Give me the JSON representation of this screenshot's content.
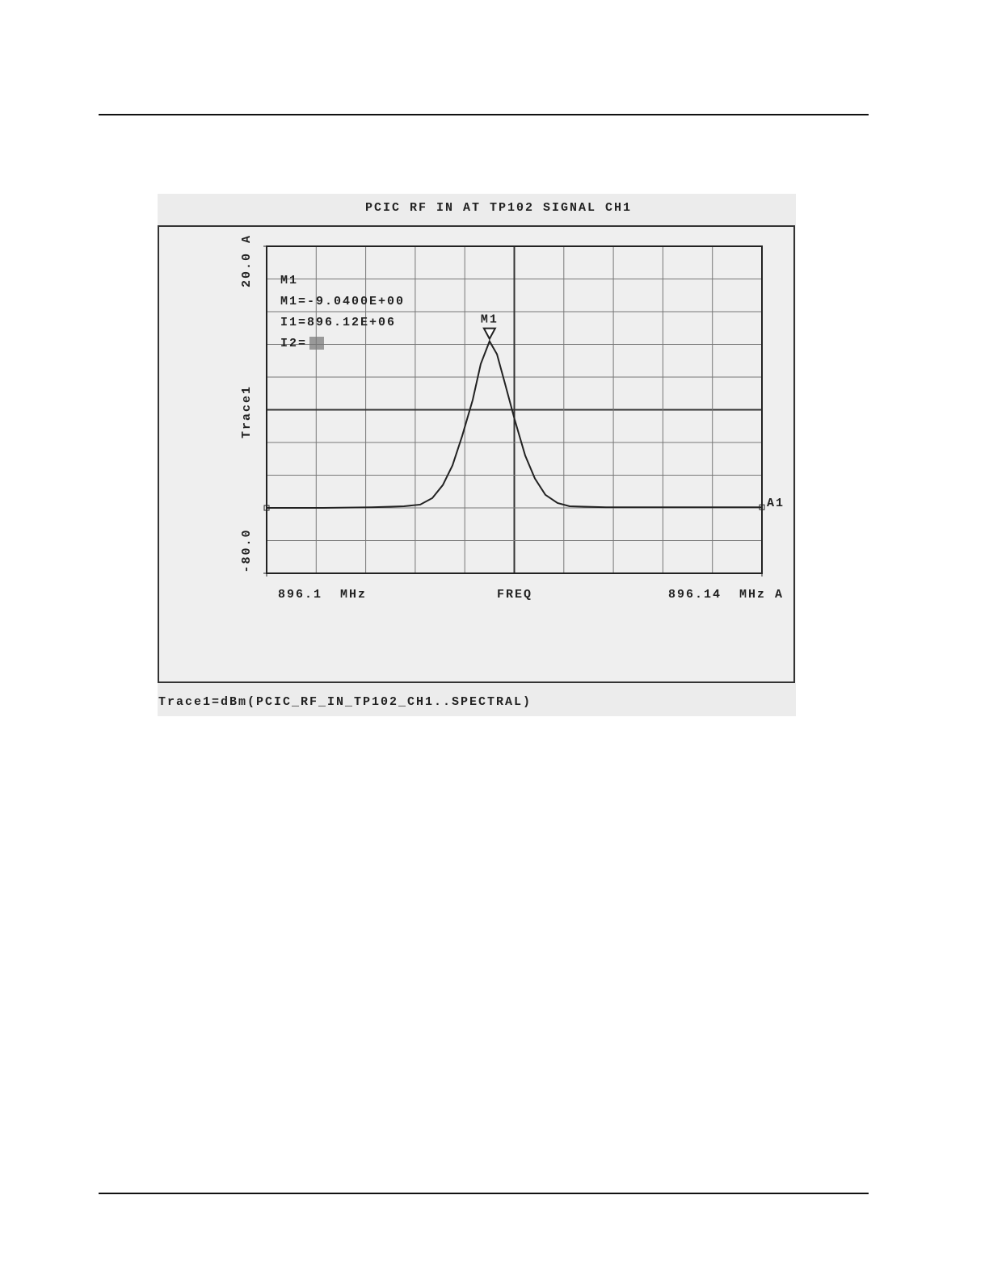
{
  "chart_data": {
    "type": "line",
    "title": "PCIC RF IN AT TP102 SIGNAL CH1",
    "y_label": "Trace1",
    "x_label": "FREQ",
    "footer": "Trace1=dBm(PCIC_RF_IN_TP102_CH1..SPECTRAL)",
    "readout": [
      "M1",
      "M1=-9.0400E+00",
      "I1=896.12E+06",
      "I2="
    ],
    "xlim": [
      896.1,
      896.14
    ],
    "ylim": [
      -80,
      20
    ],
    "xticks": [
      {
        "value": 896.1,
        "label": "896.1  MHz"
      },
      {
        "value": 896.14,
        "label": "896.14  MHz A"
      }
    ],
    "yticks": [
      {
        "value": -80,
        "label": "-80.0"
      },
      {
        "value": 20,
        "label": "20.0 A"
      }
    ],
    "grid": true,
    "series": [
      {
        "name": "A1",
        "color": "#222222",
        "x": [
          896.1,
          896.10457,
          896.10848,
          896.11109,
          896.1124,
          896.11338,
          896.11423,
          896.11501,
          896.11579,
          896.11664,
          896.11729,
          896.118,
          896.1186,
          896.11925,
          896.12003,
          896.12088,
          896.12166,
          896.12251,
          896.12349,
          896.12447,
          896.12741,
          896.13393,
          896.14
        ],
        "values": [
          -60,
          -60,
          -59.8,
          -59.5,
          -59,
          -57,
          -53,
          -47,
          -38,
          -27,
          -16,
          -9.04,
          -13,
          -22,
          -33,
          -44,
          -51,
          -56,
          -58.5,
          -59.5,
          -59.8,
          -59.8,
          -59.8
        ]
      }
    ],
    "markers": [
      {
        "label": "M1",
        "x": 896.118,
        "y": -9.04
      }
    ]
  }
}
